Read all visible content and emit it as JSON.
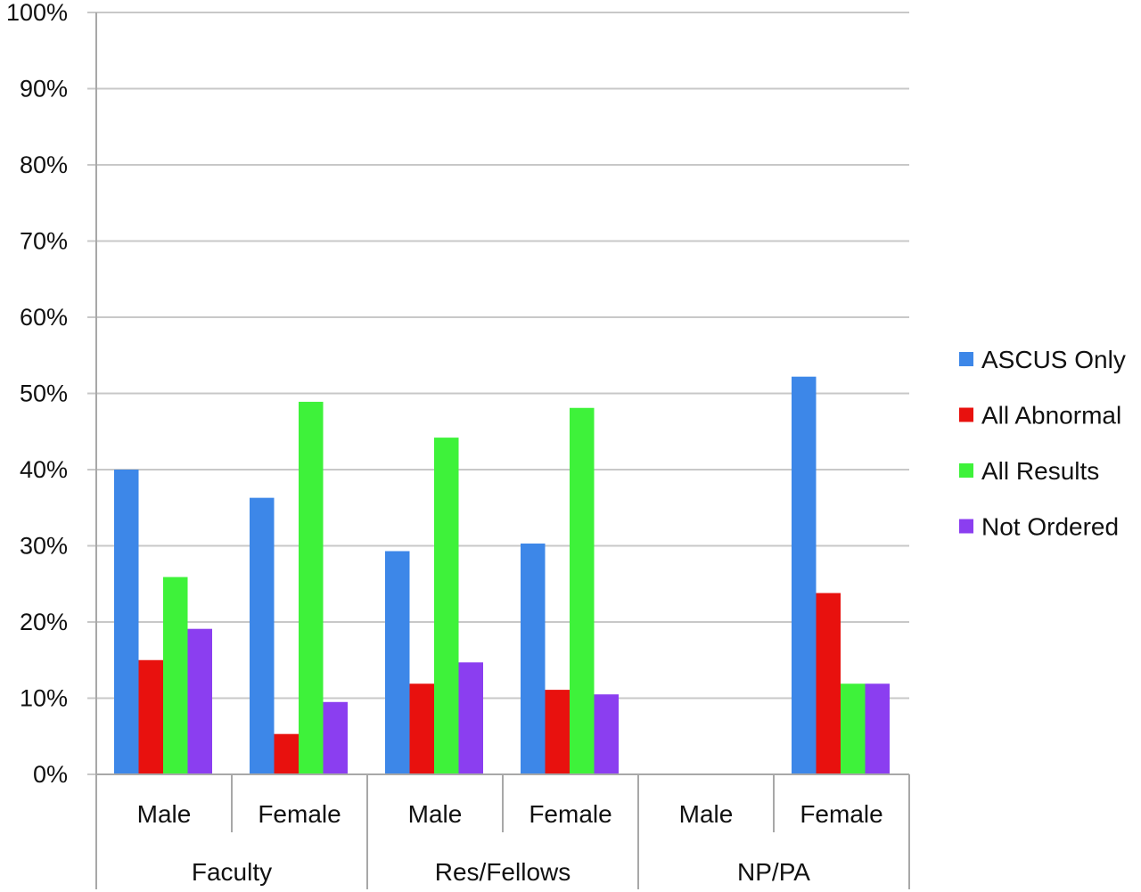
{
  "chart_data": {
    "type": "bar",
    "categories": [
      {
        "group": "Faculty",
        "label": "Male"
      },
      {
        "group": "Faculty",
        "label": "Female"
      },
      {
        "group": "Res/Fellows",
        "label": "Male"
      },
      {
        "group": "Res/Fellows",
        "label": "Female"
      },
      {
        "group": "NP/PA",
        "label": "Male"
      },
      {
        "group": "NP/PA",
        "label": "Female"
      }
    ],
    "groups": [
      "Faculty",
      "Res/Fellows",
      "NP/PA"
    ],
    "series": [
      {
        "name": "ASCUS Only",
        "color": "#3d87e8",
        "values": [
          40,
          36.3,
          29.3,
          30.3,
          0,
          52.2
        ]
      },
      {
        "name": "All Abnormal",
        "color": "#e8110e",
        "values": [
          15,
          5.3,
          11.9,
          11.1,
          0,
          23.8
        ]
      },
      {
        "name": "All Results",
        "color": "#3ef23a",
        "values": [
          25.9,
          48.9,
          44.2,
          48.1,
          0,
          11.9
        ]
      },
      {
        "name": "Not Ordered",
        "color": "#8b3ef0",
        "values": [
          19.1,
          9.5,
          14.7,
          10.5,
          0,
          11.9
        ]
      }
    ],
    "ylim": [
      0,
      100
    ],
    "yticks": [
      "0%",
      "10%",
      "20%",
      "30%",
      "40%",
      "50%",
      "60%",
      "70%",
      "80%",
      "90%",
      "100%"
    ],
    "grid": true,
    "legend_position": "right"
  }
}
